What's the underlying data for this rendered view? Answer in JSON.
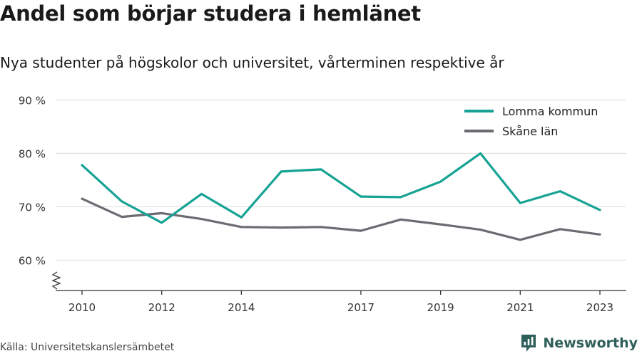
{
  "chart_data": {
    "type": "line",
    "title": "Andel som börjar studera i hemlänet",
    "subtitle": "Nya studenter på högskolor och universitet, vårterminen respektive år",
    "x": [
      2010,
      2011,
      2012,
      2013,
      2014,
      2015,
      2016,
      2017,
      2018,
      2019,
      2020,
      2021,
      2022,
      2023
    ],
    "x_tick_labels": [
      "2010",
      "2012",
      "2014",
      "2017",
      "2019",
      "2021",
      "2023"
    ],
    "x_ticks": [
      2010,
      2012,
      2014,
      2017,
      2019,
      2021,
      2023
    ],
    "y_ticks": [
      60,
      70,
      80,
      90
    ],
    "y_tick_labels": [
      "60 %",
      "70 %",
      "80 %",
      "90 %"
    ],
    "ylim": [
      54.3,
      92
    ],
    "grid": true,
    "legend_position": "top-right",
    "series": [
      {
        "name": "Lomma kommun",
        "color": "#16a394",
        "values": [
          77.8,
          71.0,
          67.0,
          72.4,
          68.0,
          76.6,
          77.0,
          71.9,
          71.8,
          74.7,
          80.0,
          70.7,
          72.9,
          69.4
        ]
      },
      {
        "name": "Skåne län",
        "color": "#6b6b72",
        "values": [
          71.5,
          68.1,
          68.8,
          67.7,
          66.2,
          66.1,
          66.2,
          65.5,
          67.6,
          66.7,
          65.7,
          63.8,
          65.8,
          64.8
        ]
      }
    ]
  },
  "source": "Källa: Universitetskanslersämbetet",
  "brand": {
    "name": "Newsworthy",
    "color": "#2f5f5a"
  }
}
